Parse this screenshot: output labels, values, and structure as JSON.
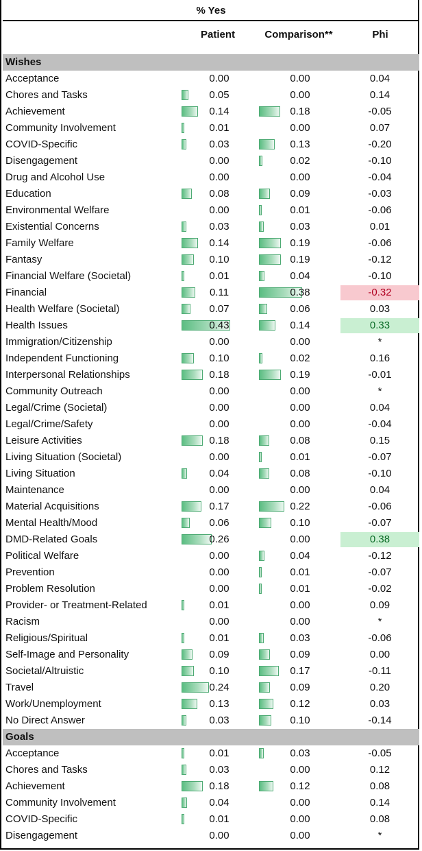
{
  "header": {
    "title": "% Yes",
    "col_patient": "Patient",
    "col_comparison": "Comparison**",
    "col_phi": "Phi"
  },
  "colors": {
    "bar": "#5bbd82",
    "neg_highlight": "#f8c9cf",
    "pos_highlight": "#c9efd2",
    "section_bg": "#bfbfbf"
  },
  "sections": [
    {
      "title": "Wishes",
      "rows": [
        {
          "label": "Acceptance",
          "patient": "0.00",
          "comparison": "0.00",
          "phi": "0.04"
        },
        {
          "label": "Chores and Tasks",
          "patient": "0.05",
          "comparison": "0.00",
          "phi": "0.14"
        },
        {
          "label": "Achievement",
          "patient": "0.14",
          "comparison": "0.18",
          "phi": "-0.05"
        },
        {
          "label": "Community Involvement",
          "patient": "0.01",
          "comparison": "0.00",
          "phi": "0.07"
        },
        {
          "label": "COVID-Specific",
          "patient": "0.03",
          "comparison": "0.13",
          "phi": "-0.20"
        },
        {
          "label": "Disengagement",
          "patient": "0.00",
          "comparison": "0.02",
          "phi": "-0.10"
        },
        {
          "label": "Drug and Alcohol Use",
          "patient": "0.00",
          "comparison": "0.00",
          "phi": "-0.04"
        },
        {
          "label": "Education",
          "patient": "0.08",
          "comparison": "0.09",
          "phi": "-0.03"
        },
        {
          "label": "Environmental Welfare",
          "patient": "0.00",
          "comparison": "0.01",
          "phi": "-0.06"
        },
        {
          "label": "Existential Concerns",
          "patient": "0.03",
          "comparison": "0.03",
          "phi": "0.01"
        },
        {
          "label": "Family Welfare",
          "patient": "0.14",
          "comparison": "0.19",
          "phi": "-0.06"
        },
        {
          "label": "Fantasy",
          "patient": "0.10",
          "comparison": "0.19",
          "phi": "-0.12"
        },
        {
          "label": "Financial Welfare (Societal)",
          "patient": "0.01",
          "comparison": "0.04",
          "phi": "-0.10"
        },
        {
          "label": "Financial",
          "patient": "0.11",
          "comparison": "0.38",
          "phi": "-0.32",
          "hl": "neg"
        },
        {
          "label": "Health Welfare (Societal)",
          "patient": "0.07",
          "comparison": "0.06",
          "phi": "0.03"
        },
        {
          "label": "Health Issues",
          "patient": "0.43",
          "comparison": "0.14",
          "phi": "0.33",
          "hl": "pos"
        },
        {
          "label": "Immigration/Citizenship",
          "patient": "0.00",
          "comparison": "0.00",
          "phi": "*"
        },
        {
          "label": "Independent Functioning",
          "patient": "0.10",
          "comparison": "0.02",
          "phi": "0.16"
        },
        {
          "label": "Interpersonal Relationships",
          "patient": "0.18",
          "comparison": "0.19",
          "phi": "-0.01"
        },
        {
          "label": "Community Outreach",
          "patient": "0.00",
          "comparison": "0.00",
          "phi": "*"
        },
        {
          "label": "Legal/Crime (Societal)",
          "patient": "0.00",
          "comparison": "0.00",
          "phi": "0.04"
        },
        {
          "label": "Legal/Crime/Safety",
          "patient": "0.00",
          "comparison": "0.00",
          "phi": "-0.04"
        },
        {
          "label": "Leisure Activities",
          "patient": "0.18",
          "comparison": "0.08",
          "phi": "0.15"
        },
        {
          "label": "Living Situation (Societal)",
          "patient": "0.00",
          "comparison": "0.01",
          "phi": "-0.07"
        },
        {
          "label": "Living Situation",
          "patient": "0.04",
          "comparison": "0.08",
          "phi": "-0.10"
        },
        {
          "label": "Maintenance",
          "patient": "0.00",
          "comparison": "0.00",
          "phi": "0.04"
        },
        {
          "label": "Material Acquisitions",
          "patient": "0.17",
          "comparison": "0.22",
          "phi": "-0.06"
        },
        {
          "label": "Mental Health/Mood",
          "patient": "0.06",
          "comparison": "0.10",
          "phi": "-0.07"
        },
        {
          "label": "DMD-Related Goals",
          "patient": "0.26",
          "comparison": "0.00",
          "phi": "0.38",
          "hl": "pos"
        },
        {
          "label": "Political Welfare",
          "patient": "0.00",
          "comparison": "0.04",
          "phi": "-0.12"
        },
        {
          "label": "Prevention",
          "patient": "0.00",
          "comparison": "0.01",
          "phi": "-0.07"
        },
        {
          "label": "Problem Resolution",
          "patient": "0.00",
          "comparison": "0.01",
          "phi": "-0.02"
        },
        {
          "label": "Provider- or Treatment-Related",
          "patient": "0.01",
          "comparison": "0.00",
          "phi": "0.09"
        },
        {
          "label": "Racism",
          "patient": "0.00",
          "comparison": "0.00",
          "phi": "*"
        },
        {
          "label": "Religious/Spiritual",
          "patient": "0.01",
          "comparison": "0.03",
          "phi": "-0.06"
        },
        {
          "label": "Self-Image and Personality",
          "patient": "0.09",
          "comparison": "0.09",
          "phi": "0.00"
        },
        {
          "label": "Societal/Altruistic",
          "patient": "0.10",
          "comparison": "0.17",
          "phi": "-0.11"
        },
        {
          "label": "Travel",
          "patient": "0.24",
          "comparison": "0.09",
          "phi": "0.20"
        },
        {
          "label": "Work/Unemployment",
          "patient": "0.13",
          "comparison": "0.12",
          "phi": "0.03"
        },
        {
          "label": "No Direct Answer",
          "patient": "0.03",
          "comparison": "0.10",
          "phi": "-0.14"
        }
      ]
    },
    {
      "title": "Goals",
      "rows": [
        {
          "label": "Acceptance",
          "patient": "0.01",
          "comparison": "0.03",
          "phi": "-0.05"
        },
        {
          "label": "Chores and Tasks",
          "patient": "0.03",
          "comparison": "0.00",
          "phi": "0.12"
        },
        {
          "label": "Achievement",
          "patient": "0.18",
          "comparison": "0.12",
          "phi": "0.08"
        },
        {
          "label": "Community Involvement",
          "patient": "0.04",
          "comparison": "0.00",
          "phi": "0.14"
        },
        {
          "label": "COVID-Specific",
          "patient": "0.01",
          "comparison": "0.00",
          "phi": "0.08"
        },
        {
          "label": "Disengagement",
          "patient": "0.00",
          "comparison": "0.00",
          "phi": "*"
        }
      ]
    }
  ]
}
